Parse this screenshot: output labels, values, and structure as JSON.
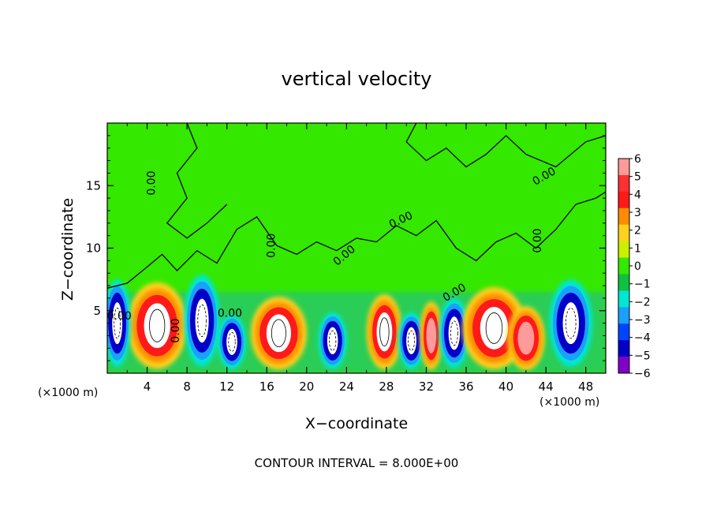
{
  "chart_data": {
    "type": "heatmap",
    "title": "vertical velocity",
    "xlabel": "X−coordinate",
    "ylabel": "Z−coordinate",
    "x_unit": "(×1000 m)",
    "xlim": [
      0,
      50
    ],
    "ylim": [
      0,
      20
    ],
    "x_ticks": [
      "4",
      "8",
      "12",
      "16",
      "20",
      "24",
      "28",
      "32",
      "36",
      "40",
      "44",
      "48"
    ],
    "x_tick_values": [
      4,
      8,
      12,
      16,
      20,
      24,
      28,
      32,
      36,
      40,
      44,
      48
    ],
    "y_ticks": [
      "5",
      "10",
      "15"
    ],
    "y_tick_values": [
      5,
      10,
      15
    ],
    "colorbar": {
      "labels": [
        "6",
        "5",
        "4",
        "3",
        "2",
        "1",
        "0",
        "−1",
        "−2",
        "−3",
        "−4",
        "−5",
        "−6"
      ],
      "values": [
        6,
        5,
        4,
        3,
        2,
        1,
        0,
        -1,
        -2,
        -3,
        -4,
        -5,
        -6
      ],
      "colors": [
        "#ff9a9a",
        "#ff3030",
        "#ff1a1a",
        "#ff8c00",
        "#ffd21e",
        "#c8f000",
        "#34e800",
        "#10c040",
        "#00e6d2",
        "#1aa0ff",
        "#0044ff",
        "#0000c8",
        "#8000c8"
      ]
    },
    "contour_labels": [
      "0.00",
      "0.00",
      "0.00",
      "0.00",
      "0.00",
      "0.00",
      "0.00",
      "0.00",
      "0.00",
      "0.00"
    ],
    "contour_interval": "CONTOUR INTERVAL = 8.000E+00",
    "cells": [
      {
        "x": 5,
        "z": 3.8,
        "w": 3.2,
        "value": 6
      },
      {
        "x": 1.0,
        "z": 4.0,
        "w": 1.5,
        "value": -5
      },
      {
        "x": 9.5,
        "z": 4.2,
        "w": 2.0,
        "value": -5
      },
      {
        "x": 12.5,
        "z": 2.5,
        "w": 1.6,
        "value": -5
      },
      {
        "x": 17.2,
        "z": 3.2,
        "w": 3.0,
        "value": 6
      },
      {
        "x": 22.6,
        "z": 2.6,
        "w": 1.6,
        "value": -5
      },
      {
        "x": 27.8,
        "z": 3.3,
        "w": 1.9,
        "value": 6
      },
      {
        "x": 30.5,
        "z": 2.6,
        "w": 1.5,
        "value": -5
      },
      {
        "x": 32.5,
        "z": 3.0,
        "w": 1.2,
        "value": 3
      },
      {
        "x": 34.8,
        "z": 3.2,
        "w": 1.7,
        "value": -5
      },
      {
        "x": 38.8,
        "z": 3.6,
        "w": 3.4,
        "value": 6
      },
      {
        "x": 42.0,
        "z": 2.8,
        "w": 2.0,
        "value": 5
      },
      {
        "x": 46.5,
        "z": 4.0,
        "w": 2.4,
        "value": -5
      }
    ]
  },
  "labels": {
    "contour_note": "CONTOUR INTERVAL = 8.000E+00",
    "x_unit_left": "(×1000 m)",
    "x_unit_right": "(×1000 m)"
  }
}
